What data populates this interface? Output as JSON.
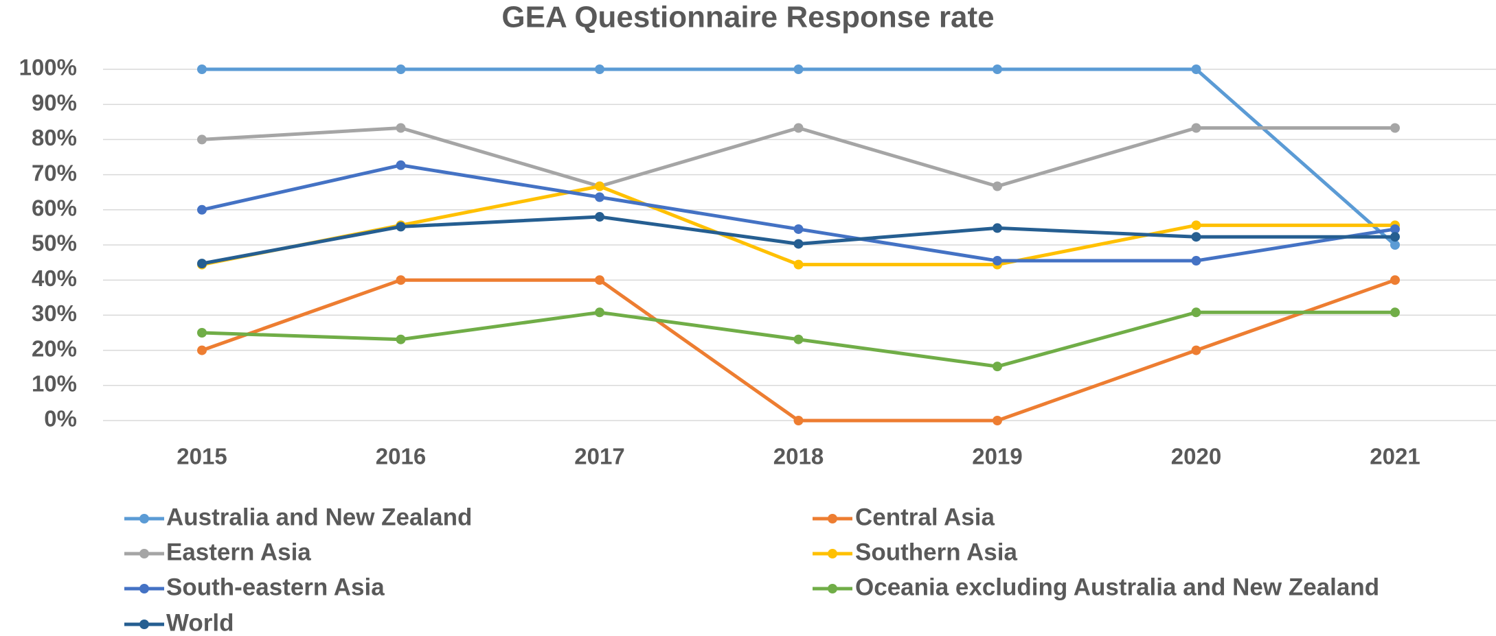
{
  "chart_data": {
    "type": "line",
    "title": "GEA Questionnaire Response rate",
    "categories": [
      "2015",
      "2016",
      "2017",
      "2018",
      "2019",
      "2020",
      "2021"
    ],
    "series": [
      {
        "name": "Australia and New Zealand",
        "color": "#5b9bd5",
        "values": [
          100,
          100,
          100,
          100,
          100,
          100,
          50
        ]
      },
      {
        "name": "Central Asia",
        "color": "#ed7d31",
        "values": [
          20,
          40,
          40,
          0,
          0,
          20,
          40
        ]
      },
      {
        "name": "Eastern Asia",
        "color": "#a5a5a5",
        "values": [
          80,
          83.3,
          66.7,
          83.3,
          66.7,
          83.3,
          83.3
        ]
      },
      {
        "name": "Southern Asia",
        "color": "#ffc000",
        "values": [
          44.4,
          55.6,
          66.7,
          44.4,
          44.4,
          55.6,
          55.6
        ]
      },
      {
        "name": "South-eastern Asia",
        "color": "#4472c4",
        "values": [
          60,
          72.7,
          63.6,
          54.5,
          45.5,
          45.5,
          54.5
        ]
      },
      {
        "name": "Oceania excluding Australia and New Zealand",
        "color": "#70ad47",
        "values": [
          25,
          23.1,
          30.8,
          23.1,
          15.4,
          30.8,
          30.8
        ]
      },
      {
        "name": "World",
        "color": "#255e91",
        "values": [
          44.7,
          55.2,
          58,
          50.3,
          54.8,
          52.3,
          52.3
        ]
      }
    ],
    "ylim": [
      0,
      100
    ],
    "yticks": [
      {
        "value": 0,
        "label": "0%"
      },
      {
        "value": 10,
        "label": "10%"
      },
      {
        "value": 20,
        "label": "20%"
      },
      {
        "value": 30,
        "label": "30%"
      },
      {
        "value": 40,
        "label": "40%"
      },
      {
        "value": 50,
        "label": "50%"
      },
      {
        "value": 60,
        "label": "60%"
      },
      {
        "value": 70,
        "label": "70%"
      },
      {
        "value": 80,
        "label": "80%"
      },
      {
        "value": 90,
        "label": "90%"
      },
      {
        "value": 100,
        "label": "100%"
      }
    ],
    "grid": true,
    "legend": "bottom"
  }
}
